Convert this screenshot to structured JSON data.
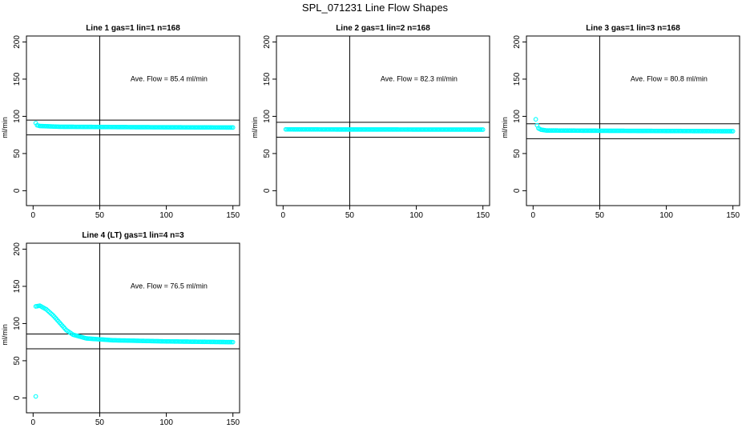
{
  "figure": {
    "title": "SPL_071231  Line Flow Shapes",
    "colors": {
      "points": "#00ffff",
      "lines": "#000000",
      "background": "#ffffff"
    }
  },
  "chart_data": [
    {
      "type": "scatter",
      "title": "Line 1 gas=1 lin=1 n=168",
      "xlabel": "",
      "ylabel": "ml/min",
      "xlim": [
        -5,
        155
      ],
      "ylim": [
        -20,
        208
      ],
      "xticks": [
        0,
        50,
        100,
        150
      ],
      "yticks": [
        0,
        50,
        100,
        150,
        200
      ],
      "annotation": {
        "text": "Ave. Flow =  85.4  ml/min",
        "x": 102,
        "y": 147
      },
      "hlines": [
        95,
        75
      ],
      "vlines": [
        50
      ],
      "series": [
        {
          "x_start": 2,
          "x_end": 150,
          "x_step": 1,
          "y_profile": [
            [
              2,
              91
            ],
            [
              3,
              88
            ],
            [
              5,
              87
            ],
            [
              20,
              86
            ],
            [
              80,
              85.4
            ],
            [
              150,
              85
            ]
          ]
        }
      ]
    },
    {
      "type": "scatter",
      "title": "Line 2 gas=1 lin=2 n=168",
      "xlabel": "",
      "ylabel": "ml/min",
      "xlim": [
        -5,
        155
      ],
      "ylim": [
        -20,
        208
      ],
      "xticks": [
        0,
        50,
        100,
        150
      ],
      "yticks": [
        0,
        50,
        100,
        150,
        200
      ],
      "annotation": {
        "text": "Ave. Flow =  82.3  ml/min",
        "x": 102,
        "y": 147
      },
      "hlines": [
        92,
        72
      ],
      "vlines": [
        50
      ],
      "series": [
        {
          "x_start": 2,
          "x_end": 150,
          "x_step": 1,
          "y_profile": [
            [
              2,
              82.5
            ],
            [
              50,
              82.3
            ],
            [
              150,
              82.2
            ]
          ]
        }
      ]
    },
    {
      "type": "scatter",
      "title": "Line 3 gas=1 lin=3 n=168",
      "xlabel": "",
      "ylabel": "ml/min",
      "xlim": [
        -5,
        155
      ],
      "ylim": [
        -20,
        208
      ],
      "xticks": [
        0,
        50,
        100,
        150
      ],
      "yticks": [
        0,
        50,
        100,
        150,
        200
      ],
      "annotation": {
        "text": "Ave. Flow =  80.8  ml/min",
        "x": 102,
        "y": 147
      },
      "hlines": [
        90,
        70
      ],
      "vlines": [
        50
      ],
      "series": [
        {
          "x_start": 2,
          "x_end": 150,
          "x_step": 1,
          "y_profile": [
            [
              2,
              96
            ],
            [
              3,
              88
            ],
            [
              4,
              84
            ],
            [
              6,
              82
            ],
            [
              10,
              81
            ],
            [
              40,
              80.7
            ],
            [
              150,
              80
            ]
          ]
        }
      ]
    },
    {
      "type": "scatter",
      "title": "Line 4 (LT) gas=1 lin=4 n=3",
      "xlabel": "",
      "ylabel": "ml/min",
      "xlim": [
        -5,
        155
      ],
      "ylim": [
        -20,
        208
      ],
      "xticks": [
        0,
        50,
        100,
        150
      ],
      "yticks": [
        0,
        50,
        100,
        150,
        200
      ],
      "annotation": {
        "text": "Ave. Flow =  76.5  ml/min",
        "x": 102,
        "y": 147
      },
      "hlines": [
        86,
        66
      ],
      "vlines": [
        50
      ],
      "series": [
        {
          "x_start": 2,
          "x_end": 150,
          "x_step": 1,
          "y_profile": [
            [
              2,
              123
            ],
            [
              5,
              124
            ],
            [
              10,
              119
            ],
            [
              15,
              111
            ],
            [
              20,
              101
            ],
            [
              25,
              91
            ],
            [
              30,
              85
            ],
            [
              40,
              80
            ],
            [
              60,
              77.5
            ],
            [
              100,
              76
            ],
            [
              150,
              75
            ]
          ],
          "extra_points": [
            [
              2,
              2
            ]
          ]
        }
      ]
    }
  ]
}
